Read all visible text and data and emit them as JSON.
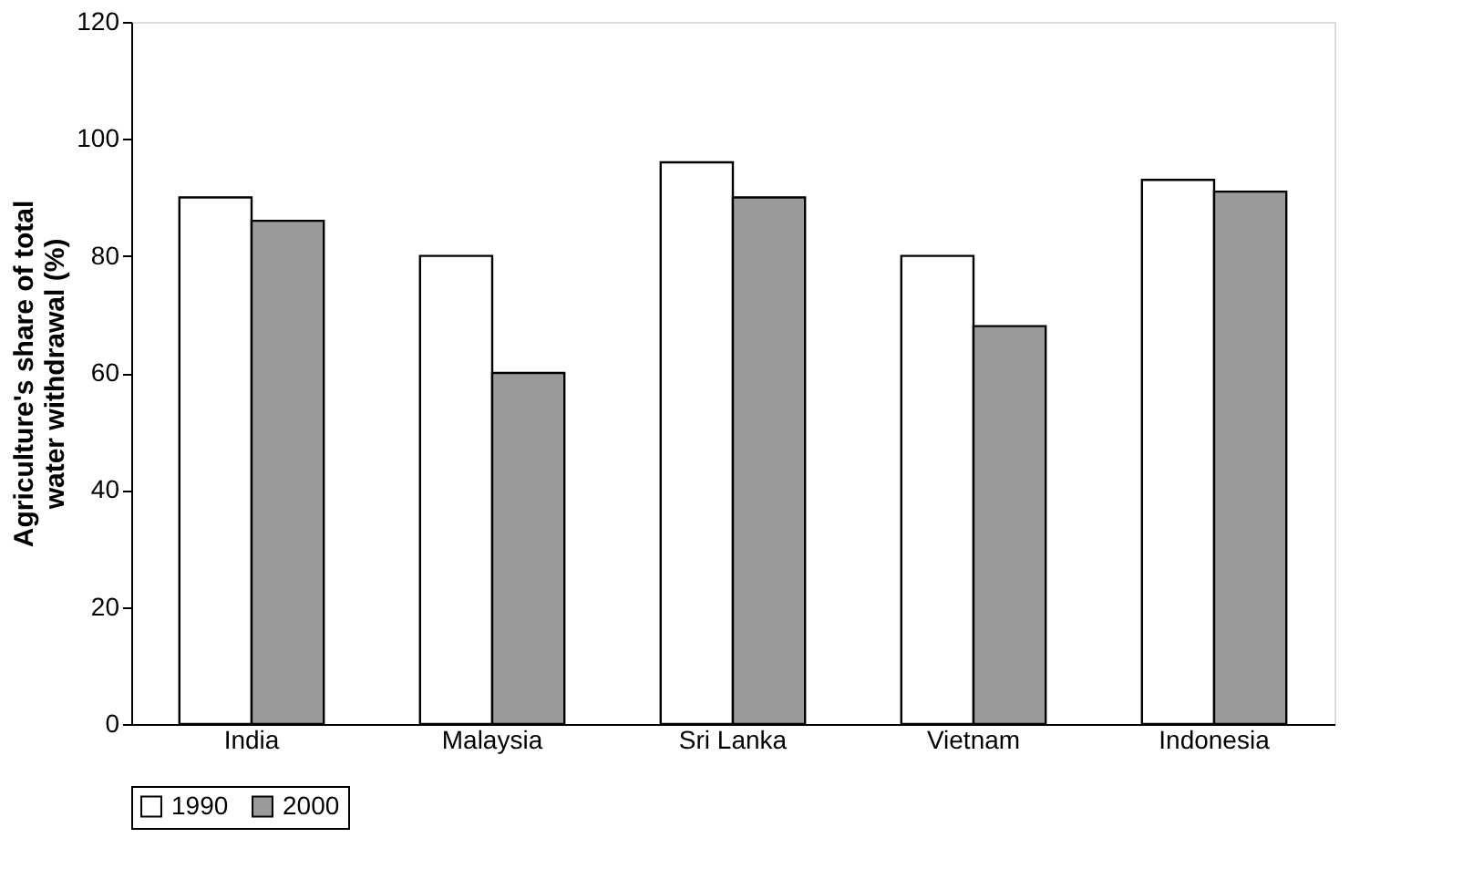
{
  "chart_data": {
    "type": "bar",
    "ylabel": "Agriculture's share of total water withdrawal (%)",
    "categories": [
      "India",
      "Malaysia",
      "Sri Lanka",
      "Vietnam",
      "Indonesia"
    ],
    "series": [
      {
        "name": "1990",
        "color": "#ffffff",
        "values": [
          90,
          80,
          96,
          80,
          93
        ]
      },
      {
        "name": "2000",
        "color": "#9a9a9a",
        "values": [
          86,
          60,
          90,
          68,
          91
        ]
      }
    ],
    "ylim": [
      0,
      120
    ],
    "yticks": [
      0,
      20,
      40,
      60,
      80,
      100,
      120
    ],
    "grid": false,
    "legend": "bottom"
  }
}
